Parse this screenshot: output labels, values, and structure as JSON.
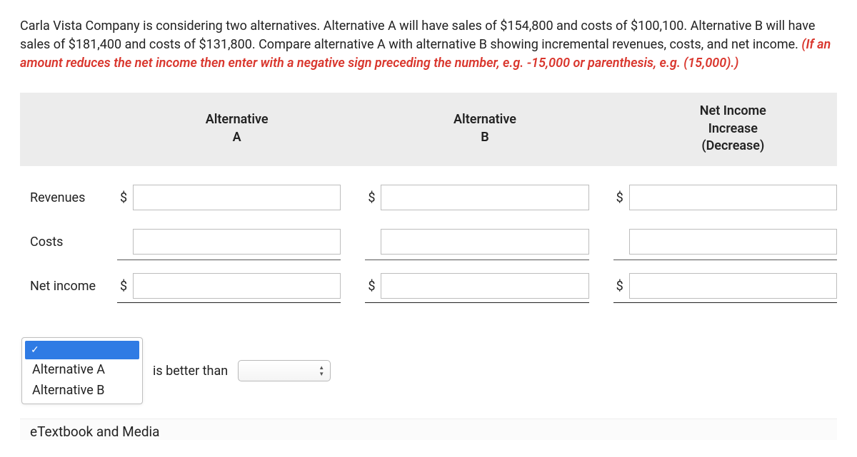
{
  "prompt": {
    "main": "Carla Vista Company is considering two alternatives. Alternative A will have sales of $154,800 and costs of $100,100. Alternative B will have sales of $181,400 and costs of $131,800. Compare alternative A with alternative B showing incremental revenues, costs, and net income. ",
    "hint": "(If an amount reduces the net income then enter with a negative sign preceding the number, e.g. -15,000 or parenthesis, e.g. (15,000).)"
  },
  "headers": {
    "colA_line1": "Alternative",
    "colA_line2": "A",
    "colB_line1": "Alternative",
    "colB_line2": "B",
    "colC_line1": "Net Income",
    "colC_line2": "Increase",
    "colC_line3": "(Decrease)"
  },
  "rows": {
    "revenues_label": "Revenues",
    "costs_label": "Costs",
    "netincome_label": "Net income"
  },
  "currency": "$",
  "values": {
    "revA": "",
    "revB": "",
    "revC": "",
    "costA": "",
    "costB": "",
    "costC": "",
    "netA": "",
    "netB": "",
    "netC": ""
  },
  "answer": {
    "selected_check": "✓",
    "optionA": "Alternative A",
    "optionB": "Alternative B",
    "middle_text": "is better than"
  },
  "footer": {
    "etext": "eTextbook and Media"
  },
  "style": {
    "hint_color": "#d9362d",
    "header_bg": "#ececec",
    "dropdown_highlight": "#2f7be4",
    "input_border": "#bdbdbd"
  }
}
